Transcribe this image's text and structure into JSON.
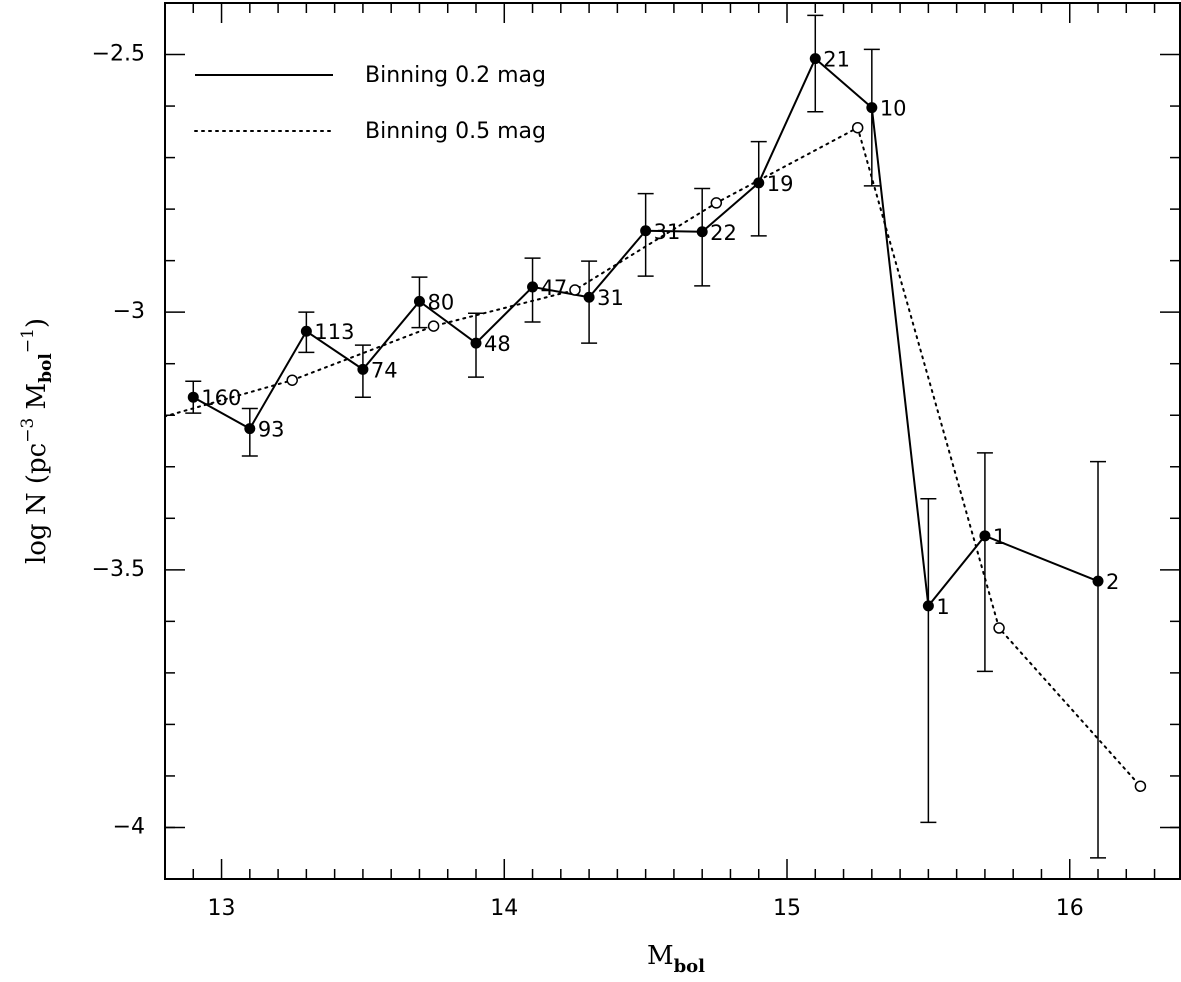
{
  "chart_data": {
    "type": "line",
    "xlabel": [
      "M",
      "bol"
    ],
    "ylabel": [
      "log N (pc",
      "−3",
      " M",
      "bol",
      "−1",
      ")"
    ],
    "xlim": [
      12.8,
      16.39
    ],
    "ylim": [
      -4.1,
      -2.4
    ],
    "xticks": [
      13,
      14,
      15,
      16
    ],
    "yticks": [
      {
        "value": -4,
        "label": "−4"
      },
      {
        "value": -3.5,
        "label": "−3.5"
      },
      {
        "value": -3,
        "label": "−3"
      },
      {
        "value": -2.5,
        "label": "−2.5"
      }
    ],
    "xminorticks": [
      12.9,
      13.1,
      13.2,
      13.3,
      13.4,
      13.5,
      13.6,
      13.7,
      13.8,
      13.9,
      14.1,
      14.2,
      14.3,
      14.4,
      14.5,
      14.6,
      14.7,
      14.8,
      14.9,
      15.1,
      15.2,
      15.3,
      15.4,
      15.5,
      15.6,
      15.7,
      15.8,
      15.9,
      16.1,
      16.2,
      16.3
    ],
    "yminorticks": [
      -4.0,
      -3.9,
      -3.8,
      -3.7,
      -3.6,
      -3.4,
      -3.3,
      -3.2,
      -3.1,
      -2.9,
      -2.8,
      -2.7,
      -2.6,
      -2.4
    ],
    "legend": "upper left",
    "series": [
      {
        "name": "Binning 0.2 mag",
        "color": "#000000",
        "style": "solid",
        "marker": "filled",
        "x": [
          12.9,
          13.1,
          13.3,
          13.5,
          13.7,
          13.9,
          14.1,
          14.3,
          14.5,
          14.7,
          14.9,
          15.1,
          15.3,
          15.5,
          15.7,
          16.1
        ],
        "values": [
          -3.165,
          -3.226,
          -3.037,
          -3.111,
          -2.979,
          -3.06,
          -2.951,
          -2.971,
          -2.842,
          -2.844,
          -2.749,
          -2.508,
          -2.603,
          -3.57,
          -3.434,
          -3.522
        ],
        "err_minus": [
          0.031,
          0.053,
          0.041,
          0.054,
          0.051,
          0.066,
          0.068,
          0.089,
          0.088,
          0.105,
          0.103,
          0.103,
          0.152,
          0.42,
          0.263,
          0.537
        ],
        "err_plus": [
          0.031,
          0.039,
          0.037,
          0.047,
          0.047,
          0.058,
          0.056,
          0.07,
          0.072,
          0.084,
          0.08,
          0.084,
          0.113,
          0.208,
          0.161,
          0.232
        ],
        "point_labels": [
          "160",
          "93",
          "113",
          "74",
          "80",
          "48",
          "47",
          "31",
          "31",
          "22",
          "19",
          "21",
          "10",
          "1",
          "1",
          "2"
        ]
      },
      {
        "name": "Binning 0.5 mag",
        "color": "#000000",
        "style": "dotted",
        "marker": "open",
        "x": [
          12.75,
          13.25,
          13.75,
          14.25,
          14.75,
          15.25,
          15.75,
          16.25
        ],
        "values": [
          -3.21,
          -3.132,
          -3.027,
          -2.957,
          -2.788,
          -2.642,
          -3.613,
          -3.92
        ]
      }
    ]
  }
}
